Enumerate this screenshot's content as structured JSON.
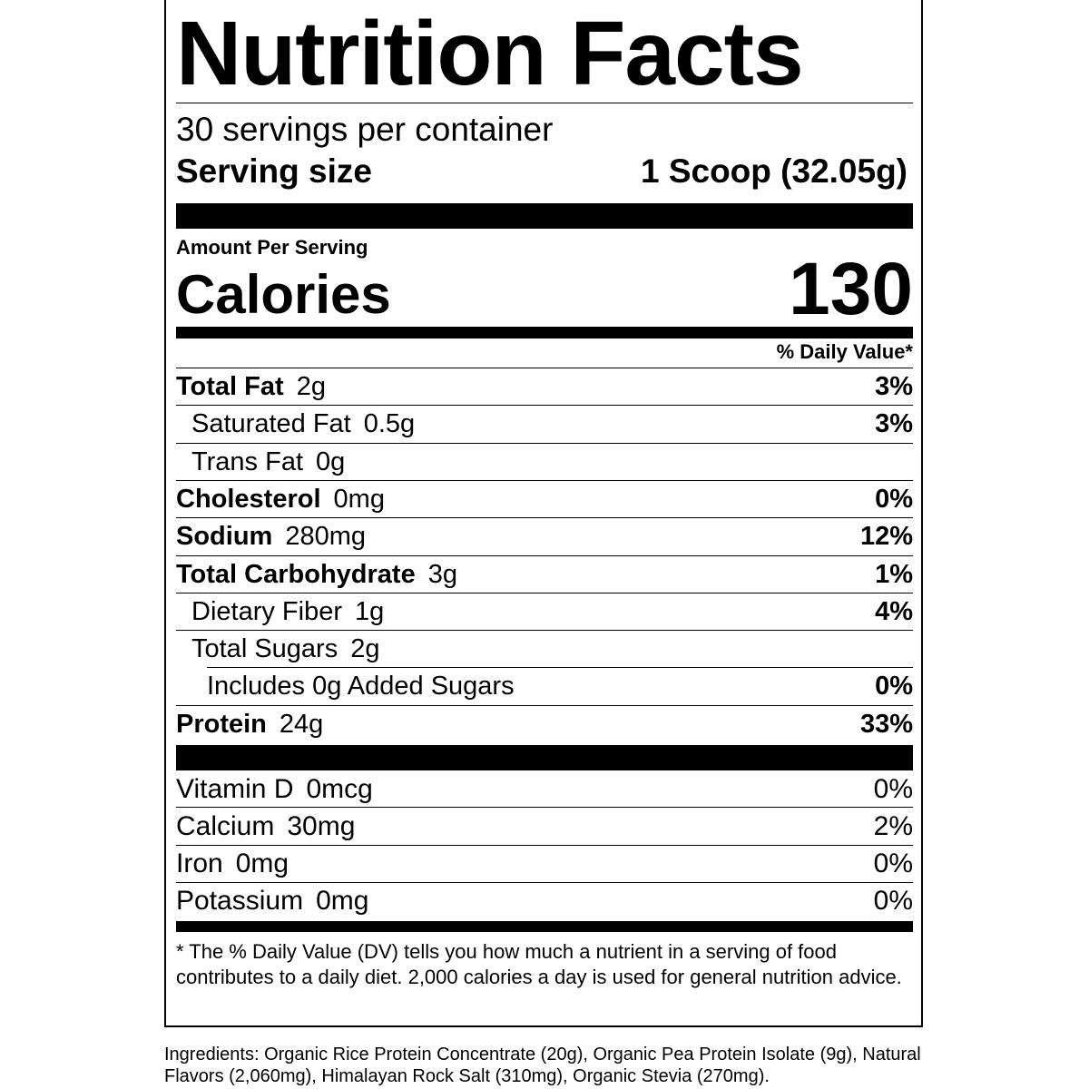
{
  "label": {
    "title": "Nutrition Facts",
    "servings": "30 servings per container",
    "serving_size_label": "Serving size",
    "serving_size_value": "1 Scoop (32.05g)",
    "amount_per_serving": "Amount Per Serving",
    "calories_label": "Calories",
    "calories": 130,
    "daily_value_header": "% Daily Value*",
    "nutrients": [
      {
        "name": "Total Fat",
        "amount": "2g",
        "dv": "3%",
        "sub": [
          {
            "name": "Saturated Fat",
            "amount": "0.5g",
            "dv": "3%"
          },
          {
            "name": "Trans Fat",
            "amount": "0g"
          }
        ]
      },
      {
        "name": "Cholesterol",
        "amount": "0mg",
        "dv": "0%"
      },
      {
        "name": "Sodium",
        "amount": "280mg",
        "dv": "12%"
      },
      {
        "name": "Total Carbohydrate",
        "amount": "3g",
        "dv": "1%",
        "sub": [
          {
            "name": "Dietary Fiber",
            "amount": "1g",
            "dv": "4%"
          },
          {
            "name": "Total Sugars",
            "amount": "2g",
            "sub": [
              {
                "name": "Includes 0g Added Sugars",
                "dv": "0%"
              }
            ]
          }
        ]
      },
      {
        "name": "Protein",
        "amount": "24g",
        "dv": "33%"
      }
    ],
    "vitamins": [
      {
        "name": "Vitamin D",
        "amount": "0mcg",
        "dv": "0%"
      },
      {
        "name": "Calcium",
        "amount": "30mg",
        "dv": "2%"
      },
      {
        "name": "Iron",
        "amount": "0mg",
        "dv": "0%"
      },
      {
        "name": "Potassium",
        "amount": "0mg",
        "dv": "0%"
      }
    ],
    "footnote": "* The % Daily Value (DV) tells you how much a nutrient in a serving of food contributes to a daily diet. 2,000 calories a day is used for general nutrition advice."
  },
  "ingredients": "Ingredients: Organic Rice Protein Concentrate (20g), Organic Pea Protein Isolate (9g), Natural Flavors (2,060mg), Himalayan Rock Salt (310mg), Organic Stevia (270mg)."
}
